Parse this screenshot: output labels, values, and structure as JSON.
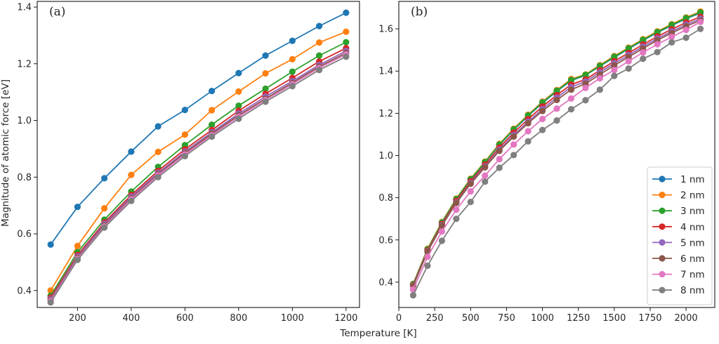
{
  "figure": {
    "xlabel": "Temperature [K]",
    "ylabel": "Magnitude of atomic force [eV]"
  },
  "legend": {
    "placement": "bottom-right",
    "entries": [
      {
        "label": "1 nm",
        "color": "#1f77b4"
      },
      {
        "label": "2 nm",
        "color": "#ff7f0e"
      },
      {
        "label": "3 nm",
        "color": "#2ca02c"
      },
      {
        "label": "4 nm",
        "color": "#d62728"
      },
      {
        "label": "5 nm",
        "color": "#9467bd"
      },
      {
        "label": "6 nm",
        "color": "#8c564b"
      },
      {
        "label": "7 nm",
        "color": "#e377c2"
      },
      {
        "label": "8 nm",
        "color": "#7f7f7f"
      }
    ]
  },
  "chart_data": [
    {
      "type": "line",
      "panel_label": "(a)",
      "xlabel": "",
      "ylabel": "Magnitude of atomic force [eV]",
      "xlim": [
        50,
        1250
      ],
      "ylim": [
        0.34,
        1.42
      ],
      "xticks": [
        200,
        400,
        600,
        800,
        1000,
        1200
      ],
      "yticks": [
        0.4,
        0.6,
        0.8,
        1.0,
        1.2,
        1.4
      ],
      "ytick_labels": [
        "0.4",
        "0.6",
        "0.8",
        "1.0",
        "1.2",
        "1.4"
      ],
      "x": [
        100,
        200,
        300,
        400,
        500,
        600,
        700,
        800,
        900,
        1000,
        1100,
        1200
      ],
      "series": [
        {
          "name": "1 nm",
          "color": "#1f77b4",
          "values": [
            0.562,
            0.695,
            0.796,
            0.89,
            0.979,
            1.037,
            1.104,
            1.167,
            1.229,
            1.281,
            1.333,
            1.38
          ]
        },
        {
          "name": "2 nm",
          "color": "#ff7f0e",
          "values": [
            0.4,
            0.557,
            0.69,
            0.808,
            0.889,
            0.95,
            1.036,
            1.102,
            1.166,
            1.216,
            1.275,
            1.313
          ]
        },
        {
          "name": "3 nm",
          "color": "#2ca02c",
          "values": [
            0.382,
            0.535,
            0.65,
            0.749,
            0.836,
            0.913,
            0.985,
            1.052,
            1.112,
            1.172,
            1.229,
            1.276
          ]
        },
        {
          "name": "4 nm",
          "color": "#d62728",
          "values": [
            0.375,
            0.525,
            0.64,
            0.737,
            0.822,
            0.898,
            0.966,
            1.034,
            1.094,
            1.15,
            1.208,
            1.255
          ]
        },
        {
          "name": "5 nm",
          "color": "#9467bd",
          "values": [
            0.37,
            0.52,
            0.635,
            0.731,
            0.815,
            0.89,
            0.958,
            1.024,
            1.084,
            1.139,
            1.196,
            1.245
          ]
        },
        {
          "name": "6 nm",
          "color": "#8c564b",
          "values": [
            0.366,
            0.516,
            0.63,
            0.726,
            0.81,
            0.885,
            0.953,
            1.018,
            1.077,
            1.133,
            1.19,
            1.238
          ]
        },
        {
          "name": "7 nm",
          "color": "#e377c2",
          "values": [
            0.363,
            0.512,
            0.626,
            0.722,
            0.806,
            0.88,
            0.948,
            1.013,
            1.072,
            1.128,
            1.185,
            1.233
          ]
        },
        {
          "name": "8 nm",
          "color": "#7f7f7f",
          "values": [
            0.358,
            0.508,
            0.622,
            0.716,
            0.8,
            0.874,
            0.943,
            1.006,
            1.066,
            1.121,
            1.178,
            1.225
          ]
        }
      ]
    },
    {
      "type": "line",
      "panel_label": "(b)",
      "xlabel": "",
      "ylabel": "",
      "xlim": [
        0,
        2200
      ],
      "ylim": [
        0.28,
        1.73
      ],
      "xticks": [
        0,
        250,
        500,
        750,
        1000,
        1250,
        1500,
        1750,
        2000
      ],
      "yticks": [
        0.4,
        0.6,
        0.8,
        1.0,
        1.2,
        1.4,
        1.6
      ],
      "ytick_labels": [
        "0.4",
        "0.6",
        "0.8",
        "1.0",
        "1.2",
        "1.4",
        "1.6"
      ],
      "x": [
        100,
        200,
        300,
        400,
        500,
        600,
        700,
        800,
        900,
        1000,
        1100,
        1200,
        1300,
        1400,
        1500,
        1600,
        1700,
        1800,
        1900,
        2000,
        2100
      ],
      "series": [
        {
          "name": "1 nm",
          "color": "#1f77b4",
          "values": [
            0.39,
            0.555,
            0.682,
            0.793,
            0.886,
            0.967,
            1.05,
            1.121,
            1.187,
            1.249,
            1.304,
            1.355,
            1.38,
            1.423,
            1.465,
            1.505,
            1.545,
            1.582,
            1.616,
            1.648,
            1.675
          ]
        },
        {
          "name": "2 nm",
          "color": "#ff7f0e",
          "values": [
            0.392,
            0.558,
            0.685,
            0.796,
            0.89,
            0.971,
            1.055,
            1.127,
            1.193,
            1.255,
            1.31,
            1.362,
            1.384,
            1.428,
            1.471,
            1.511,
            1.551,
            1.588,
            1.622,
            1.654,
            1.682
          ]
        },
        {
          "name": "3 nm",
          "color": "#2ca02c",
          "values": [
            0.391,
            0.556,
            0.683,
            0.794,
            0.888,
            0.969,
            1.052,
            1.124,
            1.19,
            1.252,
            1.307,
            1.358,
            1.382,
            1.425,
            1.468,
            1.508,
            1.548,
            1.585,
            1.619,
            1.651,
            1.678
          ]
        },
        {
          "name": "4 nm",
          "color": "#d62728",
          "values": [
            0.386,
            0.55,
            0.675,
            0.785,
            0.878,
            0.957,
            1.038,
            1.108,
            1.172,
            1.232,
            1.286,
            1.336,
            1.36,
            1.404,
            1.447,
            1.486,
            1.526,
            1.564,
            1.598,
            1.63,
            1.657
          ]
        },
        {
          "name": "5 nm",
          "color": "#9467bd",
          "values": [
            0.384,
            0.546,
            0.67,
            0.778,
            0.87,
            0.948,
            1.028,
            1.097,
            1.16,
            1.22,
            1.274,
            1.324,
            1.35,
            1.394,
            1.437,
            1.476,
            1.516,
            1.554,
            1.588,
            1.62,
            1.648
          ]
        },
        {
          "name": "6 nm",
          "color": "#8c564b",
          "values": [
            0.382,
            0.544,
            0.667,
            0.775,
            0.866,
            0.944,
            1.022,
            1.09,
            1.153,
            1.211,
            1.263,
            1.312,
            1.34,
            1.384,
            1.427,
            1.467,
            1.507,
            1.546,
            1.58,
            1.612,
            1.64
          ]
        },
        {
          "name": "7 nm",
          "color": "#e377c2",
          "values": [
            0.365,
            0.52,
            0.64,
            0.743,
            0.83,
            0.905,
            0.983,
            1.052,
            1.115,
            1.173,
            1.222,
            1.27,
            1.32,
            1.366,
            1.405,
            1.446,
            1.488,
            1.527,
            1.562,
            1.595,
            1.633
          ]
        },
        {
          "name": "8 nm",
          "color": "#7f7f7f",
          "values": [
            0.338,
            0.478,
            0.596,
            0.7,
            0.78,
            0.876,
            0.942,
            1.002,
            1.067,
            1.121,
            1.166,
            1.219,
            1.262,
            1.312,
            1.377,
            1.412,
            1.458,
            1.49,
            1.536,
            1.558,
            1.6
          ]
        }
      ]
    }
  ]
}
